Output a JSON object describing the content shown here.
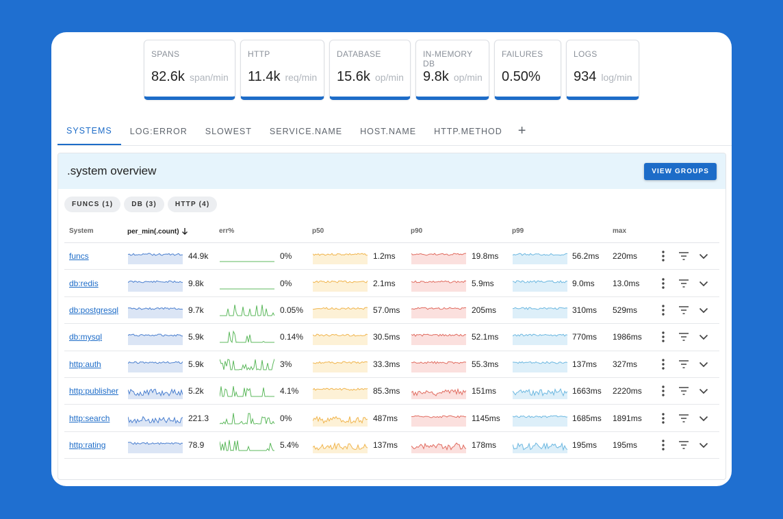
{
  "metrics": [
    {
      "label": "SPANS",
      "value": "82.6k",
      "unit": "span/min"
    },
    {
      "label": "HTTP",
      "value": "11.4k",
      "unit": "req/min"
    },
    {
      "label": "DATABASE",
      "value": "15.6k",
      "unit": "op/min"
    },
    {
      "label": "IN-MEMORY DB",
      "value": "9.8k",
      "unit": "op/min"
    },
    {
      "label": "FAILURES",
      "value": "0.50%",
      "unit": ""
    },
    {
      "label": "LOGS",
      "value": "934",
      "unit": "log/min"
    }
  ],
  "tabs": [
    "SYSTEMS",
    "LOG:ERROR",
    "SLOWEST",
    "SERVICE.NAME",
    "HOST.NAME",
    "HTTP.METHOD"
  ],
  "tab_add": "+",
  "panel": {
    "title": ".system overview",
    "button": "VIEW GROUPS"
  },
  "chips": [
    "FUNCS (1)",
    "DB (3)",
    "HTTP (4)"
  ],
  "columns": {
    "system": "System",
    "per_min": "per_min(.count)",
    "err": "err%",
    "p50": "p50",
    "p90": "p90",
    "p99": "p99",
    "max": "max"
  },
  "colors": {
    "accent": "#1d6cc8",
    "blue": "#4a7fcf",
    "green": "#5cb85c",
    "orange": "#f0b44c",
    "red": "#e06a5e",
    "cyan": "#6bb7e0"
  },
  "rows": [
    {
      "system": "funcs",
      "rate": "44.9k",
      "err": "0%",
      "p50": "1.2ms",
      "p90": "19.8ms",
      "p99": "56.2ms",
      "max": "220ms"
    },
    {
      "system": "db:redis",
      "rate": "9.8k",
      "err": "0%",
      "p50": "2.1ms",
      "p90": "5.9ms",
      "p99": "9.0ms",
      "max": "13.0ms"
    },
    {
      "system": "db:postgresql",
      "rate": "9.7k",
      "err": "0.05%",
      "p50": "57.0ms",
      "p90": "205ms",
      "p99": "310ms",
      "max": "529ms"
    },
    {
      "system": "db:mysql",
      "rate": "5.9k",
      "err": "0.14%",
      "p50": "30.5ms",
      "p90": "52.1ms",
      "p99": "770ms",
      "max": "1986ms"
    },
    {
      "system": "http:auth",
      "rate": "5.9k",
      "err": "3%",
      "p50": "33.3ms",
      "p90": "55.3ms",
      "p99": "137ms",
      "max": "327ms"
    },
    {
      "system": "http:publisher",
      "rate": "5.2k",
      "err": "4.1%",
      "p50": "85.3ms",
      "p90": "151ms",
      "p99": "1663ms",
      "max": "2220ms"
    },
    {
      "system": "http:search",
      "rate": "221.3",
      "err": "0%",
      "p50": "487ms",
      "p90": "1145ms",
      "p99": "1685ms",
      "max": "1891ms"
    },
    {
      "system": "http:rating",
      "rate": "78.9",
      "err": "5.4%",
      "p50": "137ms",
      "p90": "178ms",
      "p99": "195ms",
      "max": "195ms"
    }
  ],
  "row_icons": [
    "more-vert-icon",
    "filter-icon",
    "chevron-down-icon"
  ]
}
